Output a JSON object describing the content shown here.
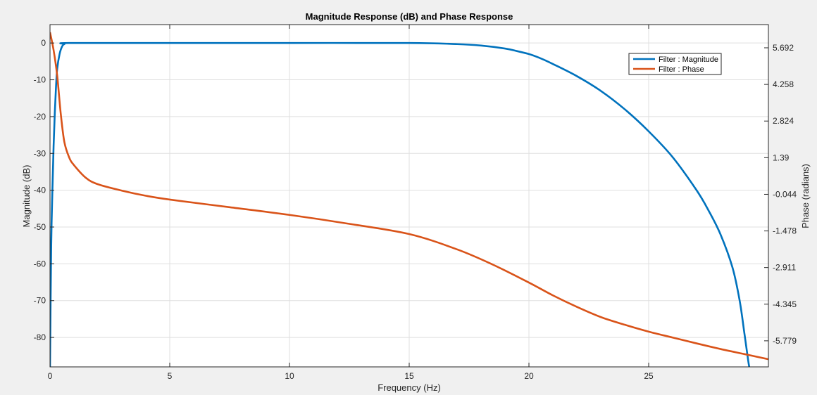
{
  "chart_data": {
    "type": "line",
    "title": "Magnitude Response (dB) and Phase Response",
    "xlabel": "Frequency (Hz)",
    "ylabel_left": "Magnitude (dB)",
    "ylabel_right": "Phase (radians)",
    "xlim": [
      0,
      30
    ],
    "ylim_left": [
      -88,
      5
    ],
    "ylim_right": [
      -6.8,
      6.6
    ],
    "grid": true,
    "legend_position": "top-right",
    "x_ticks": [
      "0",
      "5",
      "10",
      "15",
      "20",
      "25"
    ],
    "y_ticks_left": [
      "0",
      "-10",
      "-20",
      "-30",
      "-40",
      "-50",
      "-60",
      "-70",
      "-80"
    ],
    "y_ticks_right": [
      "5.692",
      "4.258",
      "2.824",
      "1.39",
      "-0.044",
      "-1.478",
      "-2.911",
      "-4.345",
      "-5.779"
    ],
    "series": [
      {
        "name": "Filter : Magnitude",
        "axis": "left",
        "color": "#0072bd",
        "points": [
          [
            0,
            -88
          ],
          [
            0.05,
            -55
          ],
          [
            0.1,
            -40
          ],
          [
            0.15,
            -28
          ],
          [
            0.2,
            -19
          ],
          [
            0.25,
            -12
          ],
          [
            0.3,
            -7
          ],
          [
            0.4,
            -3
          ],
          [
            0.5,
            -1
          ],
          [
            0.6,
            -0.3
          ],
          [
            0.8,
            0
          ],
          [
            5,
            0
          ],
          [
            10,
            0
          ],
          [
            15,
            0
          ],
          [
            17,
            -0.3
          ],
          [
            18,
            -0.7
          ],
          [
            19,
            -1.5
          ],
          [
            19.5,
            -2.2
          ],
          [
            20,
            -3
          ],
          [
            20.5,
            -4.2
          ],
          [
            21,
            -5.7
          ],
          [
            22,
            -9
          ],
          [
            23,
            -13
          ],
          [
            24,
            -18
          ],
          [
            25,
            -24
          ],
          [
            26,
            -31
          ],
          [
            27,
            -40
          ],
          [
            27.5,
            -45.5
          ],
          [
            28,
            -52
          ],
          [
            28.5,
            -61
          ],
          [
            28.8,
            -70
          ],
          [
            29,
            -79
          ],
          [
            29.15,
            -86
          ],
          [
            29.2,
            -88
          ]
        ]
      },
      {
        "name": "Filter : Phase",
        "axis": "right",
        "color": "#d95319",
        "points": [
          [
            0,
            6.3
          ],
          [
            0.15,
            5.6
          ],
          [
            0.3,
            4.6
          ],
          [
            0.45,
            3.1
          ],
          [
            0.6,
            2.0
          ],
          [
            0.8,
            1.4
          ],
          [
            1,
            1.1
          ],
          [
            1.5,
            0.6
          ],
          [
            2,
            0.35
          ],
          [
            3,
            0.1
          ],
          [
            4,
            -0.1
          ],
          [
            5,
            -0.25
          ],
          [
            7.5,
            -0.55
          ],
          [
            10,
            -0.85
          ],
          [
            12.5,
            -1.2
          ],
          [
            15,
            -1.6
          ],
          [
            17,
            -2.2
          ],
          [
            18.5,
            -2.8
          ],
          [
            20,
            -3.5
          ],
          [
            21,
            -4.0
          ],
          [
            22,
            -4.45
          ],
          [
            23,
            -4.85
          ],
          [
            24,
            -5.15
          ],
          [
            25,
            -5.42
          ],
          [
            26,
            -5.65
          ],
          [
            27,
            -5.88
          ],
          [
            28,
            -6.1
          ],
          [
            29,
            -6.3
          ],
          [
            30,
            -6.5
          ]
        ]
      }
    ]
  }
}
